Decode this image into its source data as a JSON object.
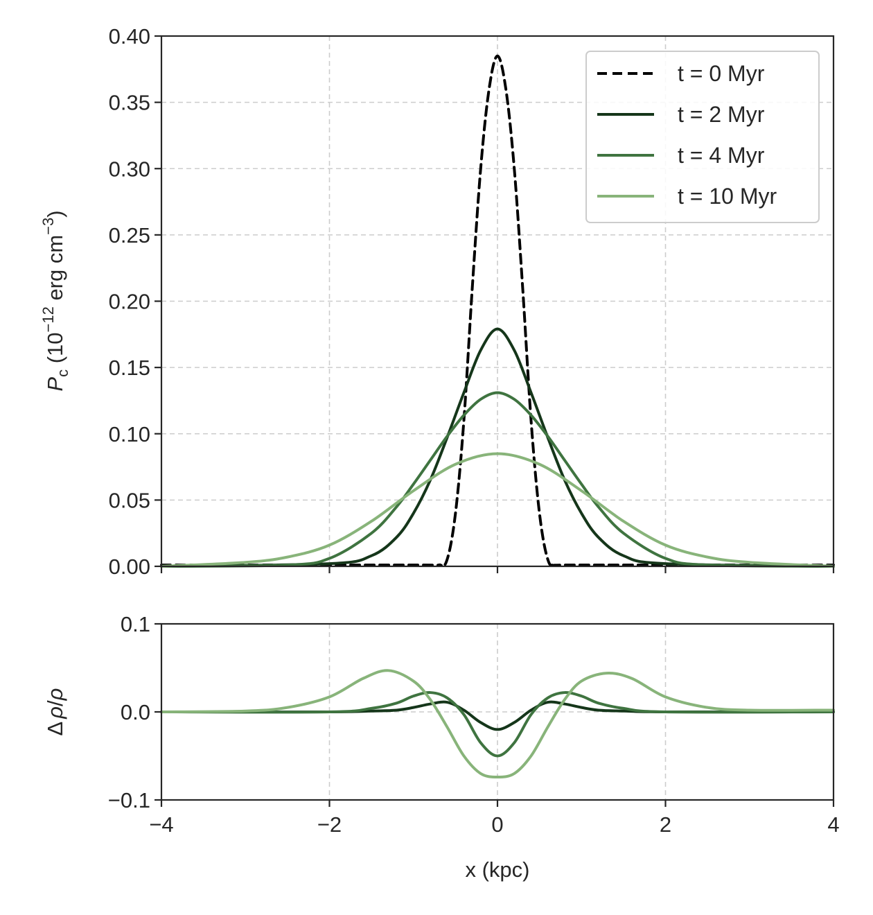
{
  "chart_data": [
    {
      "type": "line",
      "panel": "top",
      "xlabel": "",
      "ylabel_parts": {
        "sym": "P",
        "sub": "c",
        "open": " (10",
        "exp1": "−12",
        "unit": " erg cm",
        "exp2": "−3",
        "close": ")"
      },
      "xlim": [
        -4,
        4
      ],
      "ylim": [
        0,
        0.4
      ],
      "x_ticks": [
        -4,
        -2,
        0,
        2,
        4
      ],
      "y_ticks": [
        0.0,
        0.05,
        0.1,
        0.15,
        0.2,
        0.25,
        0.3,
        0.35,
        0.4
      ],
      "y_tick_labels": [
        "0.00",
        "0.05",
        "0.10",
        "0.15",
        "0.20",
        "0.25",
        "0.30",
        "0.35",
        "0.40"
      ],
      "grid": true,
      "legend_position": "top-right",
      "series": [
        {
          "name": "t = 0 Myr",
          "color": "#000000",
          "dash": true,
          "x": [
            -4,
            -1.0,
            -0.7,
            -0.6,
            -0.5,
            -0.4,
            -0.3,
            -0.2,
            -0.1,
            0.0,
            0.1,
            0.2,
            0.3,
            0.4,
            0.5,
            0.6,
            0.7,
            1.0,
            4
          ],
          "y": [
            0.001,
            0.001,
            0.001,
            0.005,
            0.04,
            0.11,
            0.21,
            0.3,
            0.36,
            0.385,
            0.36,
            0.3,
            0.21,
            0.11,
            0.04,
            0.005,
            0.001,
            0.001,
            0.001
          ]
        },
        {
          "name": "t = 2 Myr",
          "color": "#15361a",
          "x": [
            -4,
            -2.0,
            -1.5,
            -1.2,
            -1.0,
            -0.8,
            -0.6,
            -0.4,
            -0.2,
            0.0,
            0.2,
            0.4,
            0.6,
            0.8,
            1.0,
            1.2,
            1.5,
            2.0,
            4
          ],
          "y": [
            0,
            0.002,
            0.008,
            0.022,
            0.04,
            0.065,
            0.097,
            0.131,
            0.163,
            0.179,
            0.163,
            0.131,
            0.097,
            0.065,
            0.04,
            0.022,
            0.008,
            0.002,
            0
          ]
        },
        {
          "name": "t = 4 Myr",
          "color": "#3f7440",
          "x": [
            -4,
            -2.5,
            -2.0,
            -1.5,
            -1.2,
            -1.0,
            -0.8,
            -0.6,
            -0.4,
            -0.2,
            0.0,
            0.2,
            0.4,
            0.6,
            0.8,
            1.0,
            1.2,
            1.5,
            2.0,
            2.5,
            4
          ],
          "y": [
            0,
            0.001,
            0.006,
            0.025,
            0.045,
            0.062,
            0.08,
            0.098,
            0.114,
            0.126,
            0.131,
            0.126,
            0.114,
            0.098,
            0.08,
            0.062,
            0.045,
            0.025,
            0.006,
            0.001,
            0
          ]
        },
        {
          "name": "t = 10 Myr",
          "color": "#88b47a",
          "x": [
            -4,
            -3.0,
            -2.5,
            -2.0,
            -1.5,
            -1.0,
            -0.5,
            0.0,
            0.5,
            1.0,
            1.5,
            2.0,
            2.5,
            3.0,
            4
          ],
          "y": [
            0.0,
            0.003,
            0.007,
            0.016,
            0.034,
            0.057,
            0.077,
            0.085,
            0.077,
            0.057,
            0.034,
            0.016,
            0.007,
            0.003,
            0.0
          ]
        }
      ]
    },
    {
      "type": "line",
      "panel": "bottom",
      "xlabel": "x (kpc)",
      "ylabel_parts": {
        "delta": "Δ",
        "rho1": "ρ",
        "slash": "/",
        "rho2": "ρ"
      },
      "xlim": [
        -4,
        4
      ],
      "ylim": [
        -0.1,
        0.1
      ],
      "x_ticks": [
        -4,
        -2,
        0,
        2,
        4
      ],
      "x_tick_labels": [
        "−4",
        "−2",
        "0",
        "2",
        "4"
      ],
      "y_ticks": [
        -0.1,
        0.0,
        0.1
      ],
      "y_tick_labels": [
        "−0.1",
        "0.0",
        "0.1"
      ],
      "grid": true,
      "series": [
        {
          "name": "t = 2 Myr",
          "color": "#15361a",
          "x": [
            -4,
            -2.0,
            -1.5,
            -1.2,
            -1.0,
            -0.8,
            -0.6,
            -0.4,
            -0.2,
            0.0,
            0.2,
            0.4,
            0.6,
            0.8,
            1.0,
            1.2,
            1.5,
            2.0,
            4
          ],
          "y": [
            0,
            0,
            0.001,
            0.002,
            0.005,
            0.009,
            0.011,
            0.002,
            -0.012,
            -0.02,
            -0.012,
            0.002,
            0.011,
            0.009,
            0.005,
            0.002,
            0.001,
            0,
            0
          ]
        },
        {
          "name": "t = 4 Myr",
          "color": "#3f7440",
          "x": [
            -4,
            -2.0,
            -1.5,
            -1.2,
            -1.0,
            -0.8,
            -0.6,
            -0.4,
            -0.2,
            0.0,
            0.2,
            0.4,
            0.6,
            0.8,
            1.0,
            1.2,
            1.5,
            2.0,
            4
          ],
          "y": [
            0,
            0.0,
            0.004,
            0.01,
            0.018,
            0.022,
            0.016,
            -0.003,
            -0.035,
            -0.05,
            -0.035,
            -0.003,
            0.016,
            0.022,
            0.018,
            0.01,
            0.004,
            0.0,
            0
          ]
        },
        {
          "name": "t = 10 Myr",
          "color": "#88b47a",
          "x": [
            -4,
            -3.0,
            -2.5,
            -2.0,
            -1.6,
            -1.3,
            -1.0,
            -0.8,
            -0.6,
            -0.4,
            -0.2,
            0.0,
            0.2,
            0.4,
            0.6,
            0.8,
            1.0,
            1.3,
            1.6,
            2.0,
            2.5,
            3.0,
            4
          ],
          "y": [
            0,
            0.001,
            0.005,
            0.017,
            0.038,
            0.047,
            0.035,
            0.014,
            -0.017,
            -0.05,
            -0.07,
            -0.074,
            -0.07,
            -0.05,
            -0.017,
            0.014,
            0.035,
            0.044,
            0.038,
            0.017,
            0.005,
            0.002,
            0.002
          ]
        }
      ]
    }
  ]
}
